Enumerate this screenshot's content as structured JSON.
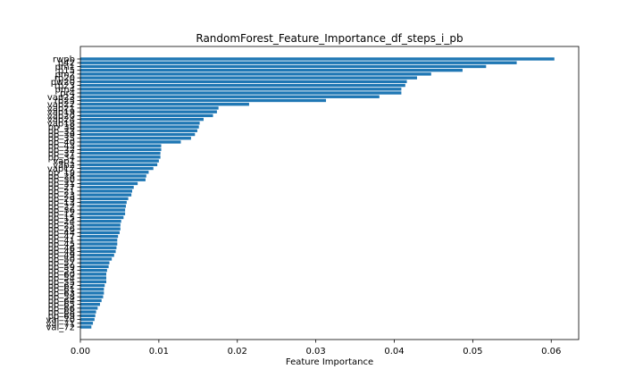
{
  "chart_data": {
    "type": "bar",
    "orientation": "horizontal",
    "title": "RandomForest_Feature_Importance_df_steps_i_pb",
    "xlabel": "Feature Importance",
    "ylabel": "",
    "xlim": [
      0,
      0.0635
    ],
    "xticks": [
      "0.00",
      "0.01",
      "0.02",
      "0.03",
      "0.04",
      "0.05",
      "0.06"
    ],
    "xtick_values": [
      0,
      0.01,
      0.02,
      0.03,
      0.04,
      0.05,
      0.06
    ],
    "color": "#1f77b4",
    "grid": false,
    "categories": [
      "rwpb",
      "p42",
      "pm1",
      "p15",
      "pm2",
      "rp20",
      "pw20",
      "rp23",
      "pm4",
      "pr4",
      "vap23",
      "rp25",
      "vap22",
      "vap21",
      "vap19",
      "vap20",
      "vap24",
      "vap18",
      "pp_38",
      "pp_33",
      "pp_39",
      "pp_35",
      "pp_40",
      "pp_43",
      "pp_32",
      "pp_37",
      "pp_34",
      "vap1",
      "vap2",
      "vap17",
      "pp_19",
      "pp_28",
      "pp_30",
      "pp_31",
      "pp_27",
      "pp_21",
      "pp_23",
      "pp_29",
      "pp_13",
      "pp_22",
      "pp_36",
      "pp_12",
      "pp_15",
      "pp_24",
      "pp_25",
      "pp_26",
      "pp_44",
      "pp_47",
      "pp_41",
      "pp_45",
      "pp_46",
      "pp_48",
      "pp_49",
      "pp_50",
      "pp_57",
      "pp_59",
      "pp_53",
      "pp_60",
      "pp_54",
      "pp_55",
      "pp_62",
      "pp_61",
      "pp_63",
      "pp_58",
      "pp_64",
      "pp_65",
      "pp_66",
      "pp_68",
      "pp_69",
      "val_70",
      "val_71",
      "val_72"
    ],
    "values": [
      0.0604,
      0.0556,
      0.0517,
      0.0487,
      0.0447,
      0.0429,
      0.0416,
      0.0414,
      0.0409,
      0.0409,
      0.0381,
      0.0313,
      0.0215,
      0.0176,
      0.0174,
      0.0169,
      0.0157,
      0.0152,
      0.0151,
      0.0149,
      0.0146,
      0.0141,
      0.0128,
      0.0103,
      0.0103,
      0.0102,
      0.0102,
      0.01,
      0.0098,
      0.0093,
      0.0087,
      0.0084,
      0.0083,
      0.0073,
      0.0068,
      0.0066,
      0.0065,
      0.0061,
      0.0059,
      0.0058,
      0.0057,
      0.0057,
      0.0055,
      0.0052,
      0.0051,
      0.0051,
      0.005,
      0.0048,
      0.0047,
      0.0047,
      0.0046,
      0.0045,
      0.0043,
      0.004,
      0.0037,
      0.0036,
      0.0034,
      0.0033,
      0.0033,
      0.0033,
      0.0031,
      0.003,
      0.003,
      0.0029,
      0.0027,
      0.0025,
      0.0022,
      0.002,
      0.0019,
      0.0018,
      0.0016,
      0.0014
    ]
  }
}
